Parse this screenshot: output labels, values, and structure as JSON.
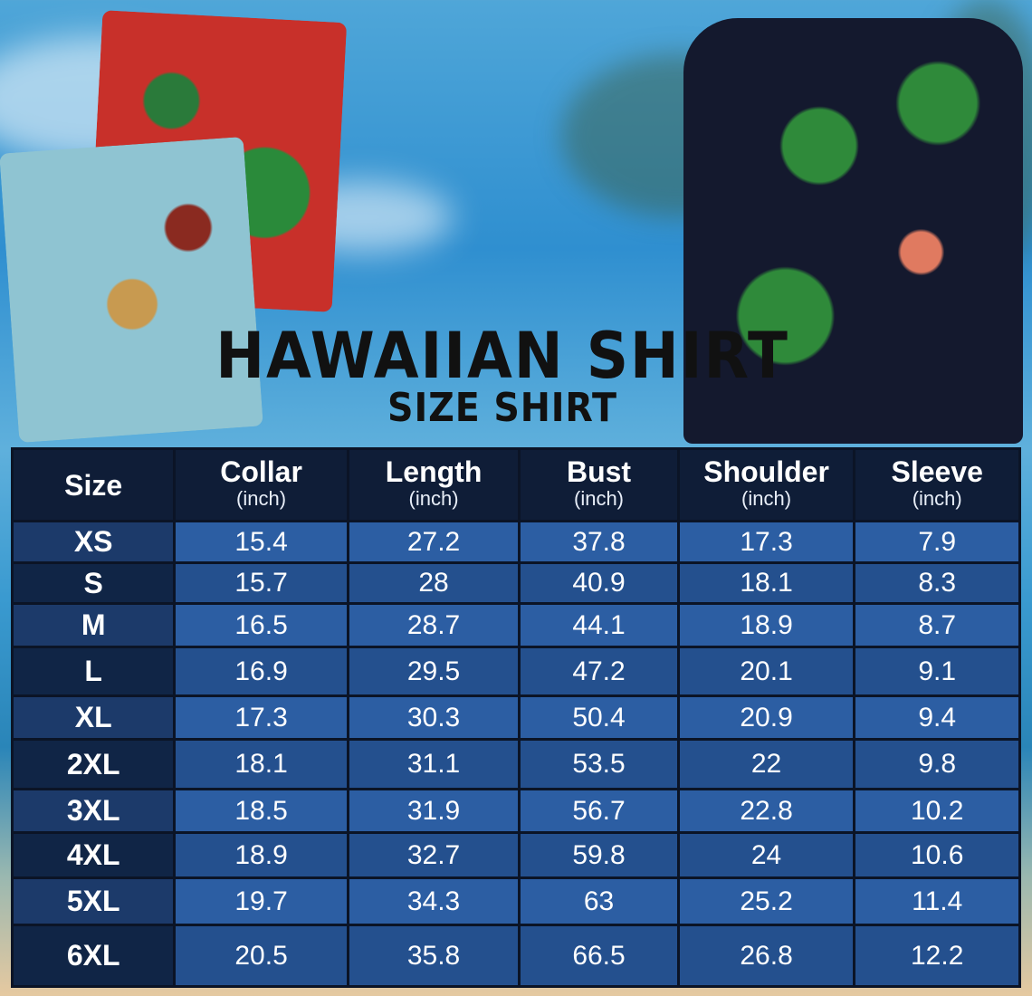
{
  "title": "HAWAIIAN SHIRT",
  "subtitle": "SIZE SHIRT",
  "colors": {
    "header": "#0f1d37",
    "row_light": "#2c5ea3",
    "row_dark": "#24508e",
    "text": "#ffffff"
  },
  "table": {
    "headers": [
      {
        "label": "Size",
        "unit": ""
      },
      {
        "label": "Collar",
        "unit": "(inch)"
      },
      {
        "label": "Length",
        "unit": "(inch)"
      },
      {
        "label": "Bust",
        "unit": "(inch)"
      },
      {
        "label": "Shoulder",
        "unit": "(inch)"
      },
      {
        "label": "Sleeve",
        "unit": "(inch)"
      }
    ],
    "rows": [
      [
        "XS",
        "15.4",
        "27.2",
        "37.8",
        "17.3",
        "7.9"
      ],
      [
        "S",
        "15.7",
        "28",
        "40.9",
        "18.1",
        "8.3"
      ],
      [
        "M",
        "16.5",
        "28.7",
        "44.1",
        "18.9",
        "8.7"
      ],
      [
        "L",
        "16.9",
        "29.5",
        "47.2",
        "20.1",
        "9.1"
      ],
      [
        "XL",
        "17.3",
        "30.3",
        "50.4",
        "20.9",
        "9.4"
      ],
      [
        "2XL",
        "18.1",
        "31.1",
        "53.5",
        "22",
        "9.8"
      ],
      [
        "3XL",
        "18.5",
        "31.9",
        "56.7",
        "22.8",
        "10.2"
      ],
      [
        "4XL",
        "18.9",
        "32.7",
        "59.8",
        "24",
        "10.6"
      ],
      [
        "5XL",
        "19.7",
        "34.3",
        "63",
        "25.2",
        "11.4"
      ],
      [
        "6XL",
        "20.5",
        "35.8",
        "66.5",
        "26.8",
        "12.2"
      ]
    ]
  }
}
